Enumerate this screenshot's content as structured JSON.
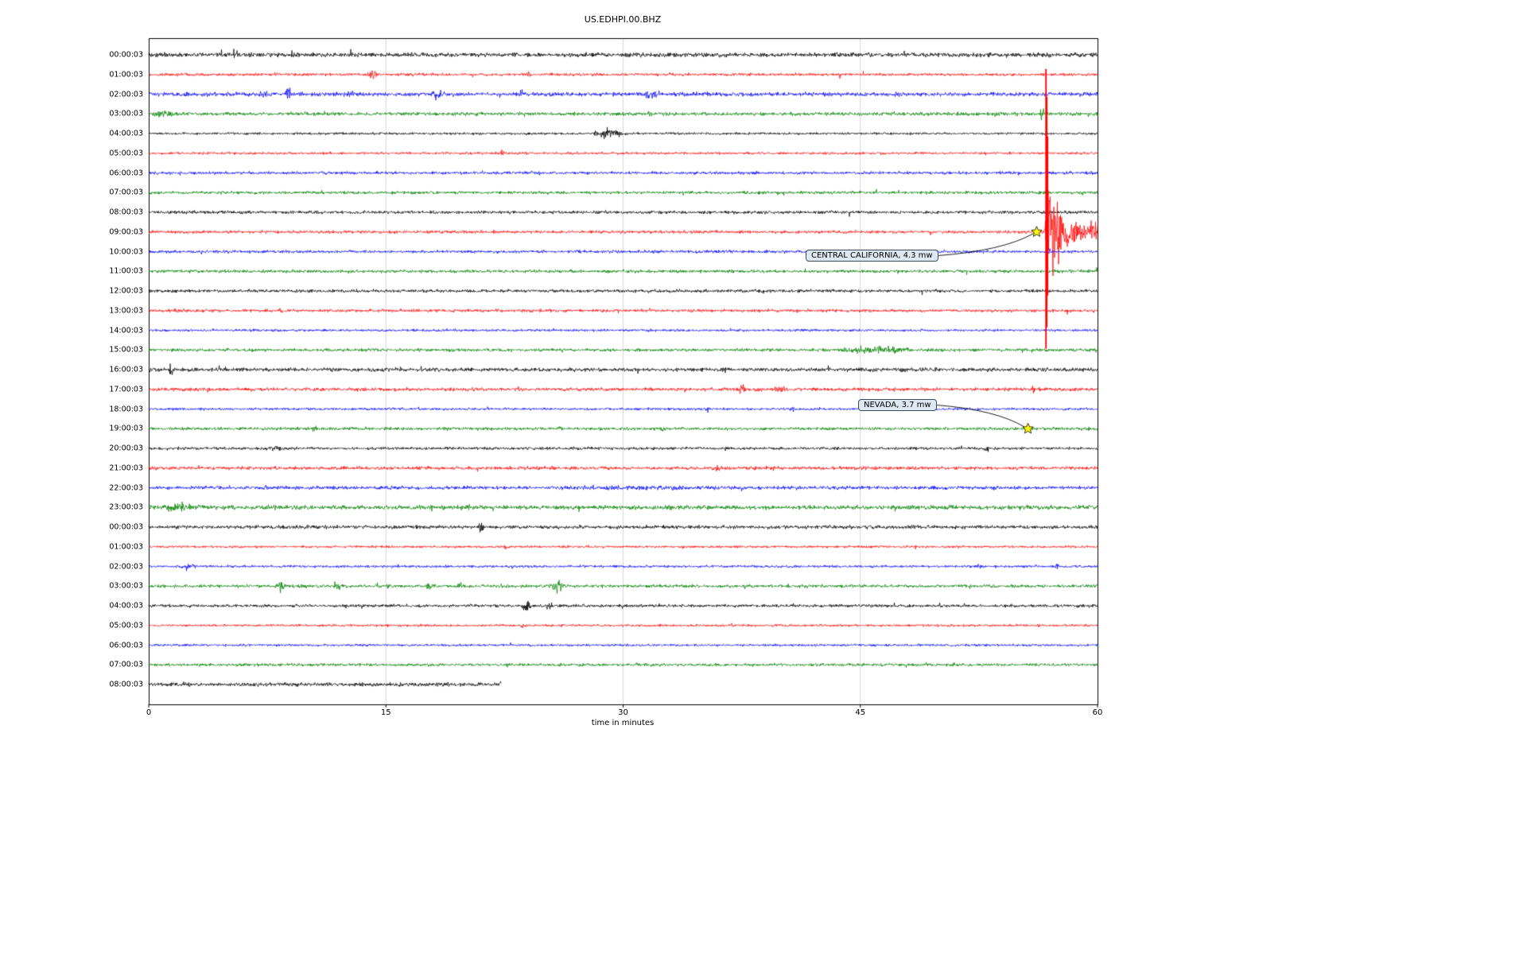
{
  "chart_data": {
    "type": "line",
    "subtype": "seismogram_dayplot",
    "title": "US.EDHPI.00.BHZ",
    "xlabel": "time in minutes",
    "x_ticks": [
      "0",
      "15",
      "30",
      "45",
      "60"
    ],
    "x_range": [
      0,
      60
    ],
    "grid": "vertical-only",
    "color_cycle": [
      "#000000",
      "#ff0000",
      "#0000ff",
      "#008000"
    ],
    "marker_color": "#ffff00",
    "rows": [
      {
        "label": "00:00:03",
        "amp": 2.8
      },
      {
        "label": "01:00:03",
        "amp": 1.8
      },
      {
        "label": "02:00:03",
        "amp": 2.5
      },
      {
        "label": "03:00:03",
        "amp": 2.2
      },
      {
        "label": "04:00:03",
        "amp": 1.5
      },
      {
        "label": "05:00:03",
        "amp": 1.6
      },
      {
        "label": "06:00:03",
        "amp": 1.9
      },
      {
        "label": "07:00:03",
        "amp": 1.9
      },
      {
        "label": "08:00:03",
        "amp": 2.0
      },
      {
        "label": "09:00:03",
        "amp": 1.9
      },
      {
        "label": "10:00:03",
        "amp": 1.9
      },
      {
        "label": "11:00:03",
        "amp": 2.0
      },
      {
        "label": "12:00:03",
        "amp": 2.0
      },
      {
        "label": "13:00:03",
        "amp": 1.9
      },
      {
        "label": "14:00:03",
        "amp": 1.6
      },
      {
        "label": "15:00:03",
        "amp": 2.0
      },
      {
        "label": "16:00:03",
        "amp": 2.4
      },
      {
        "label": "17:00:03",
        "amp": 2.2
      },
      {
        "label": "18:00:03",
        "amp": 1.6
      },
      {
        "label": "19:00:03",
        "amp": 1.9
      },
      {
        "label": "20:00:03",
        "amp": 1.8
      },
      {
        "label": "21:00:03",
        "amp": 2.2
      },
      {
        "label": "22:00:03",
        "amp": 2.2
      },
      {
        "label": "23:00:03",
        "amp": 2.8
      },
      {
        "label": "00:00:03",
        "amp": 2.3
      },
      {
        "label": "01:00:03",
        "amp": 1.5
      },
      {
        "label": "02:00:03",
        "amp": 1.6
      },
      {
        "label": "03:00:03",
        "amp": 2.0
      },
      {
        "label": "04:00:03",
        "amp": 1.9
      },
      {
        "label": "05:00:03",
        "amp": 1.5
      },
      {
        "label": "06:00:03",
        "amp": 1.5
      },
      {
        "label": "07:00:03",
        "amp": 1.8
      },
      {
        "label": "08:00:03",
        "amp": 2.4,
        "t_end": 22.3
      }
    ],
    "bursts": [
      [
        0,
        5.3,
        5.8,
        5
      ],
      [
        1,
        13.8,
        14.6,
        6
      ],
      [
        1,
        23.8,
        24.2,
        3.5
      ],
      [
        2,
        7.0,
        7.6,
        5
      ],
      [
        2,
        8.6,
        9.0,
        11
      ],
      [
        2,
        12.5,
        13.0,
        5
      ],
      [
        2,
        17.8,
        18.8,
        6
      ],
      [
        2,
        31.0,
        32.5,
        5
      ],
      [
        2,
        47.0,
        47.6,
        6
      ],
      [
        2,
        56.4,
        56.9,
        5
      ],
      [
        3,
        0.0,
        2.0,
        4
      ],
      [
        3,
        20.5,
        21.0,
        4
      ],
      [
        3,
        31.5,
        31.8,
        4
      ],
      [
        3,
        56.35,
        56.65,
        12
      ],
      [
        4,
        28.0,
        30.2,
        7
      ],
      [
        5,
        22.2,
        22.5,
        4
      ],
      [
        7,
        12.0,
        13.0,
        3
      ],
      [
        10,
        56.8,
        57.2,
        4
      ],
      [
        13,
        1.0,
        4.0,
        3
      ],
      [
        15,
        43.5,
        48.5,
        5
      ],
      [
        15,
        55.2,
        55.6,
        4
      ],
      [
        15,
        56.6,
        56.9,
        4
      ],
      [
        16,
        1.2,
        1.6,
        6
      ],
      [
        16,
        5.5,
        6.0,
        4
      ],
      [
        16,
        15.5,
        16.0,
        4
      ],
      [
        16,
        26.0,
        26.3,
        4
      ],
      [
        16,
        36.2,
        36.6,
        9
      ],
      [
        17,
        3.2,
        4.0,
        5
      ],
      [
        17,
        8.5,
        9.0,
        3
      ],
      [
        17,
        37.3,
        37.8,
        6
      ],
      [
        17,
        39.5,
        40.5,
        5
      ],
      [
        17,
        42.0,
        42.4,
        4
      ],
      [
        17,
        55.8,
        56.1,
        5
      ],
      [
        18,
        35.2,
        35.5,
        4
      ],
      [
        18,
        40.5,
        41.0,
        3
      ],
      [
        19,
        10.3,
        10.7,
        6
      ],
      [
        19,
        20.6,
        21.0,
        4
      ],
      [
        19,
        25.8,
        26.2,
        4
      ],
      [
        19,
        32.3,
        32.7,
        4
      ],
      [
        20,
        7.2,
        8.5,
        4
      ],
      [
        20,
        52.8,
        53.2,
        4
      ],
      [
        21,
        35.8,
        36.3,
        5
      ],
      [
        22,
        7.3,
        7.6,
        4
      ],
      [
        22,
        25.0,
        37.0,
        3.2
      ],
      [
        22,
        53.2,
        53.8,
        4
      ],
      [
        23,
        0.5,
        3.5,
        5
      ],
      [
        24,
        20.8,
        21.2,
        8
      ],
      [
        25,
        22.4,
        22.8,
        5
      ],
      [
        26,
        2.0,
        3.0,
        5
      ],
      [
        26,
        52.3,
        52.7,
        4
      ],
      [
        26,
        57.2,
        57.6,
        5
      ],
      [
        27,
        8.0,
        8.6,
        8
      ],
      [
        27,
        11.7,
        12.2,
        6
      ],
      [
        27,
        17.5,
        18.0,
        6
      ],
      [
        27,
        19.5,
        20.0,
        5
      ],
      [
        27,
        22.2,
        22.6,
        5
      ],
      [
        27,
        25.2,
        26.3,
        8
      ],
      [
        28,
        23.5,
        24.3,
        7
      ],
      [
        28,
        25.0,
        25.6,
        5
      ]
    ],
    "events": [
      {
        "label": "CENTRAL CALIFORNIA, 4.3 mw",
        "row": 9,
        "t_star": 56.15,
        "box_x": 1013,
        "box_y": 314
      },
      {
        "label": "NEVADA, 3.7 mw",
        "row": 19,
        "t_star": 55.6,
        "box_x": 1079,
        "box_y": 502
      }
    ],
    "main_event": {
      "row": 9,
      "t_onset": 56.62,
      "t_peak": 56.92,
      "peak_amp": 70,
      "decay": 1.15,
      "coda_amp": 9,
      "spikes": [
        [
          56.74,
          205,
          147
        ],
        [
          56.79,
          170,
          120
        ],
        [
          56.84,
          120,
          80
        ]
      ]
    }
  }
}
